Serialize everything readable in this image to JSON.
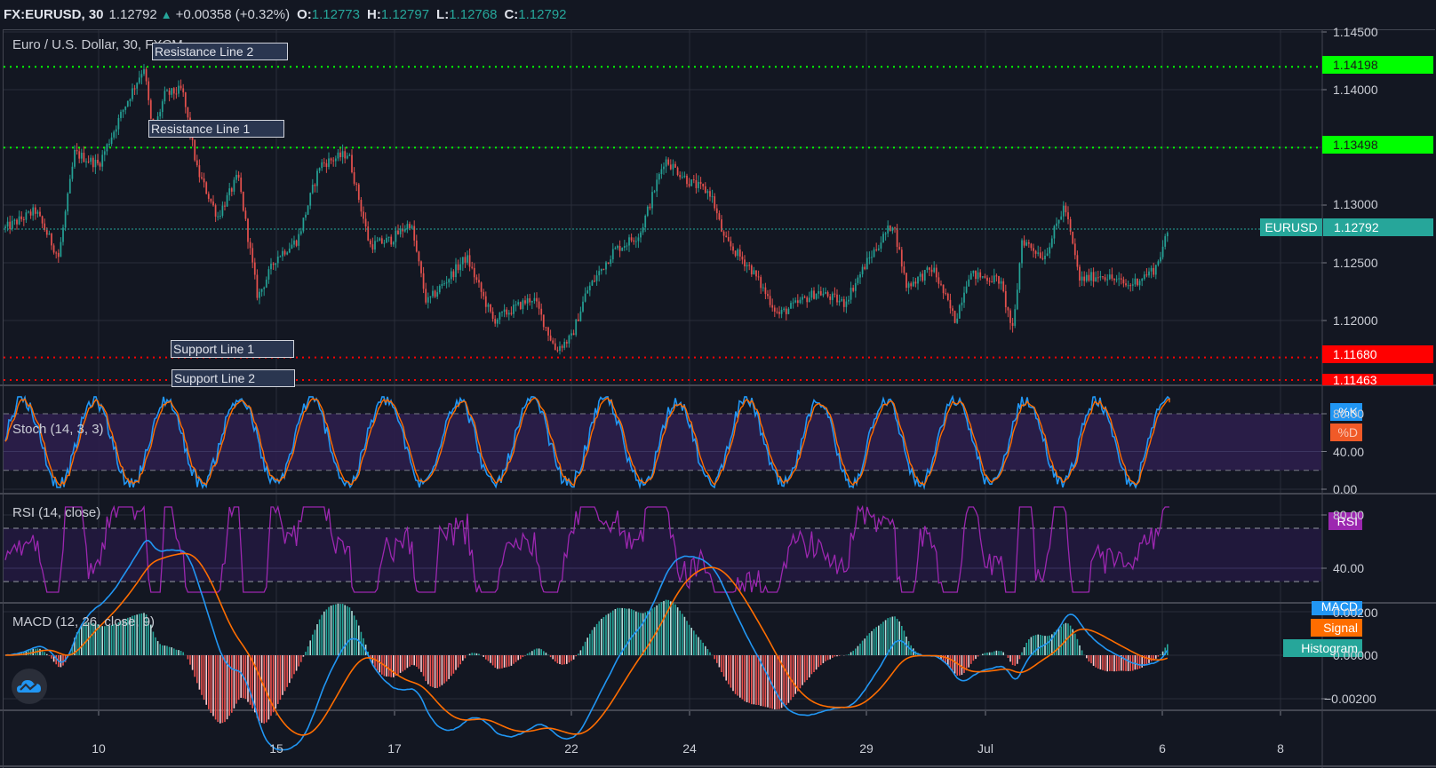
{
  "header": {
    "symbol": "FX:EURUSD, 30",
    "last": "1.12792",
    "change": "+0.00358 (+0.32%)",
    "o_label": "O:",
    "o_value": "1.12773",
    "h_label": "H:",
    "h_value": "1.12797",
    "l_label": "L:",
    "l_value": "1.12768",
    "c_label": "C:",
    "c_value": "1.12792"
  },
  "colors": {
    "background": "#131722",
    "grid": "#2a2e39",
    "up": "#26a69a",
    "down": "#ef5350",
    "resistance": "#00ff00",
    "support": "#ff0000",
    "stoch_k": "#2196f3",
    "stoch_d": "#ff6d00",
    "rsi": "#9c27b0",
    "macd": "#2196f3",
    "signal": "#ff6d00",
    "histogram": "#26a69a",
    "band_fill": "#2a1e4a"
  },
  "panes": {
    "price": {
      "title": "Euro / U.S. Dollar, 30, FXCM"
    },
    "stoch": {
      "title": "Stoch (14, 3, 3)",
      "k_label": "%K",
      "d_label": "%D"
    },
    "rsi": {
      "title": "RSI (14, close)",
      "label": "RSI"
    },
    "macd": {
      "title": "MACD (12, 26, close, 9)",
      "macd_label": "MACD",
      "signal_label": "Signal",
      "hist_label": "Histogram"
    }
  },
  "annotations": {
    "resistance_2": {
      "label": "Resistance Line 2",
      "price": "1.14198"
    },
    "resistance_1": {
      "label": "Resistance Line 1",
      "price": "1.13498"
    },
    "support_1": {
      "label": "Support Line 1",
      "price": "1.11680"
    },
    "support_2": {
      "label": "Support Line 2",
      "price": "1.11463"
    }
  },
  "last_price_tag": {
    "symbol": "EURUSD",
    "price": "1.12792"
  },
  "axes": {
    "price_ticks": [
      "1.14500",
      "1.14000",
      "1.13000",
      "1.12500",
      "1.12000"
    ],
    "stoch_ticks": [
      "80.00",
      "40.00",
      "0.00"
    ],
    "rsi_ticks": [
      "80.00",
      "40.00"
    ],
    "macd_ticks": [
      "0.00200",
      "0.00000",
      "−0.00200"
    ],
    "date_ticks": [
      "10",
      "15",
      "17",
      "22",
      "24",
      "29",
      "Jul",
      "6",
      "8"
    ]
  },
  "chart_data": {
    "type": "candlestick",
    "title": "Euro / U.S. Dollar, 30, FXCM",
    "symbol": "FX:EURUSD",
    "interval": "30",
    "ylim": [
      1.114,
      1.1455
    ],
    "x_ticks": [
      "10",
      "15",
      "17",
      "22",
      "24",
      "29",
      "Jul",
      "6",
      "8"
    ],
    "price_path_keypoints": [
      {
        "x": "start",
        "price": 1.128
      },
      {
        "x": "~9",
        "price": 1.1275
      },
      {
        "x": "~9.5",
        "price": 1.125
      },
      {
        "x": "~9.8",
        "price": 1.1345
      },
      {
        "x": "10",
        "price": 1.1335
      },
      {
        "x": "~11",
        "price": 1.1385
      },
      {
        "x": "~11.3",
        "price": 1.142
      },
      {
        "x": "~11.5",
        "price": 1.136
      },
      {
        "x": "~12",
        "price": 1.1395
      },
      {
        "x": "~12.7",
        "price": 1.14
      },
      {
        "x": "~13",
        "price": 1.133
      },
      {
        "x": "~13.5",
        "price": 1.129
      },
      {
        "x": "~14",
        "price": 1.132
      },
      {
        "x": "~14.5",
        "price": 1.122
      },
      {
        "x": "15",
        "price": 1.1255
      },
      {
        "x": "~15.5",
        "price": 1.127
      },
      {
        "x": "~16",
        "price": 1.1335
      },
      {
        "x": "~16.5",
        "price": 1.1345
      },
      {
        "x": "17",
        "price": 1.1265
      },
      {
        "x": "~17.5",
        "price": 1.128
      },
      {
        "x": "~18",
        "price": 1.1215
      },
      {
        "x": "~19",
        "price": 1.1255
      },
      {
        "x": "~20",
        "price": 1.12
      },
      {
        "x": "~21",
        "price": 1.122
      },
      {
        "x": "22",
        "price": 1.117
      },
      {
        "x": "~22.5",
        "price": 1.1215
      },
      {
        "x": "~23",
        "price": 1.127
      },
      {
        "x": "~23.5",
        "price": 1.134
      },
      {
        "x": "24",
        "price": 1.132
      },
      {
        "x": "~24.5",
        "price": 1.127
      },
      {
        "x": "~25",
        "price": 1.1245
      },
      {
        "x": "~26",
        "price": 1.121
      },
      {
        "x": "~27",
        "price": 1.123
      },
      {
        "x": "~28",
        "price": 1.124
      },
      {
        "x": "29",
        "price": 1.1285
      },
      {
        "x": "~29.5",
        "price": 1.123
      },
      {
        "x": "~30",
        "price": 1.1245
      },
      {
        "x": "~30.5",
        "price": 1.12
      },
      {
        "x": "~31",
        "price": 1.124
      },
      {
        "x": "Jul",
        "price": 1.119
      },
      {
        "x": "~2",
        "price": 1.127
      },
      {
        "x": "~3",
        "price": 1.1255
      },
      {
        "x": "~3.5",
        "price": 1.13
      },
      {
        "x": "~4",
        "price": 1.1235
      },
      {
        "x": "~5",
        "price": 1.124
      },
      {
        "x": "~5.5",
        "price": 1.123
      },
      {
        "x": "6",
        "price": 1.12792
      }
    ],
    "horizontal_levels": [
      {
        "name": "Resistance Line 2",
        "value": 1.14198,
        "color": "#00ff00"
      },
      {
        "name": "Resistance Line 1",
        "value": 1.13498,
        "color": "#00ff00"
      },
      {
        "name": "Support Line 1",
        "value": 1.1168,
        "color": "#ff0000"
      },
      {
        "name": "Support Line 2",
        "value": 1.11463,
        "color": "#ff0000"
      },
      {
        "name": "Last price",
        "value": 1.12792,
        "color": "#26a69a"
      }
    ],
    "indicators": [
      {
        "name": "Stoch (14, 3, 3)",
        "series": [
          "%K",
          "%D"
        ],
        "bands": [
          20,
          80
        ],
        "ylim": [
          0,
          100
        ],
        "last_k": "~95"
      },
      {
        "name": "RSI (14, close)",
        "series": [
          "RSI"
        ],
        "bands": [
          30,
          70
        ],
        "ylim": [
          20,
          90
        ],
        "last": "~85"
      },
      {
        "name": "MACD (12, 26, close, 9)",
        "series": [
          "MACD",
          "Signal",
          "Histogram"
        ],
        "ylim": [
          -0.0025,
          0.0025
        ],
        "last_macd": "~0.0009"
      }
    ]
  }
}
